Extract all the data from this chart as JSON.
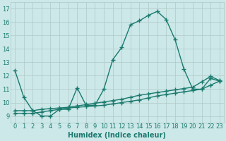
{
  "xlabel": "Humidex (Indice chaleur)",
  "background_color": "#cce8e8",
  "line_color": "#1a7a6e",
  "xlim": [
    -0.5,
    23.5
  ],
  "ylim": [
    8.5,
    17.5
  ],
  "yticks": [
    9,
    10,
    11,
    12,
    13,
    14,
    15,
    16,
    17
  ],
  "xticks": [
    0,
    1,
    2,
    3,
    4,
    5,
    6,
    7,
    8,
    9,
    10,
    11,
    12,
    13,
    14,
    15,
    16,
    17,
    18,
    19,
    20,
    21,
    22,
    23
  ],
  "xtick_labels": [
    "0",
    "1",
    "2",
    "3",
    "4",
    "5",
    "6",
    "7",
    "8",
    "9",
    "10",
    "11",
    "12",
    "13",
    "14",
    "15",
    "16",
    "17",
    "18",
    "19",
    "20",
    "21",
    "22",
    "23"
  ],
  "series1_x": [
    0,
    1,
    2,
    3,
    4,
    5,
    6,
    7,
    8,
    9,
    10,
    11,
    12,
    13,
    14,
    15,
    16,
    17,
    18,
    19,
    20,
    21,
    22,
    23
  ],
  "series1_y": [
    12.4,
    10.4,
    9.4,
    9.0,
    9.0,
    9.5,
    9.5,
    11.1,
    9.8,
    9.8,
    11.0,
    13.2,
    14.1,
    15.8,
    16.1,
    16.5,
    16.8,
    16.2,
    14.7,
    12.5,
    11.0,
    11.0,
    11.8,
    11.6
  ],
  "series2_x": [
    0,
    1,
    2,
    3,
    4,
    5,
    6,
    7,
    8,
    9,
    10,
    11,
    12,
    13,
    14,
    15,
    16,
    17,
    18,
    19,
    20,
    21,
    22,
    23
  ],
  "series2_y": [
    9.2,
    9.2,
    9.2,
    9.3,
    9.4,
    9.5,
    9.6,
    9.65,
    9.7,
    9.75,
    9.8,
    9.9,
    10.0,
    10.1,
    10.2,
    10.35,
    10.5,
    10.6,
    10.7,
    10.8,
    10.9,
    11.0,
    11.3,
    11.6
  ],
  "series3_x": [
    0,
    1,
    2,
    3,
    4,
    5,
    6,
    7,
    8,
    9,
    10,
    11,
    12,
    13,
    14,
    15,
    16,
    17,
    18,
    19,
    20,
    21,
    22,
    23
  ],
  "series3_y": [
    9.4,
    9.4,
    9.4,
    9.5,
    9.55,
    9.6,
    9.65,
    9.75,
    9.85,
    9.95,
    10.05,
    10.15,
    10.25,
    10.4,
    10.55,
    10.65,
    10.75,
    10.85,
    10.95,
    11.05,
    11.15,
    11.55,
    11.95,
    11.65
  ],
  "marker": "+",
  "markersize": 4,
  "linewidth": 1.0,
  "grid_color": "#b0c8c8",
  "tick_fontsize": 6,
  "xlabel_fontsize": 7
}
